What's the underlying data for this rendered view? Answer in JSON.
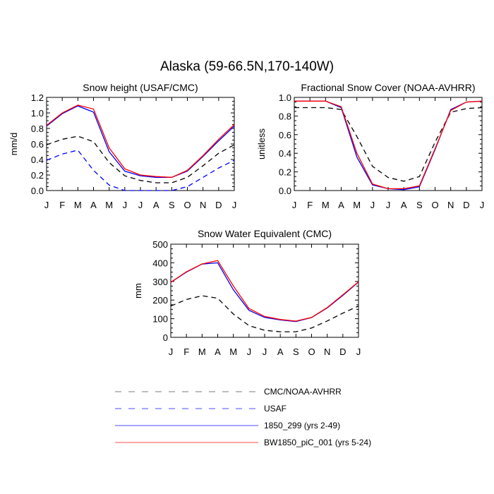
{
  "figure": {
    "title": "Alaska (59-66.5N,170-140W)"
  },
  "colors": {
    "obs": "#000000",
    "usaf": "#0000ff",
    "run_1850_299": "#0000ff",
    "run_bw1850": "#ff0000"
  },
  "legend": [
    {
      "label": "CMC/NOAA-AVHRR",
      "color": "#000000",
      "dash": true
    },
    {
      "label": "USAF",
      "color": "#0000ff",
      "dash": true
    },
    {
      "label": "1850_299 (yrs 2-49)",
      "color": "#0000ff",
      "dash": false
    },
    {
      "label": "BW1850_piC_001 (yrs 5-24)",
      "color": "#ff0000",
      "dash": false
    }
  ],
  "chart_data": [
    {
      "type": "line",
      "title": "Snow height (USAF/CMC)",
      "ylabel": "mm/d",
      "xlabel": "",
      "categories": [
        "J",
        "F",
        "M",
        "A",
        "M",
        "J",
        "J",
        "A",
        "S",
        "O",
        "N",
        "D",
        "J"
      ],
      "ylim": [
        0,
        1.2
      ],
      "yticks": [
        "0.0",
        "0.2",
        "0.4",
        "0.6",
        "0.8",
        "1.0",
        "1.2"
      ],
      "series": [
        {
          "name": "CMC/NOAA-AVHRR",
          "values": [
            0.59,
            0.66,
            0.7,
            0.63,
            0.36,
            0.19,
            0.13,
            0.1,
            0.1,
            0.17,
            0.32,
            0.48,
            0.59
          ],
          "color": "#000000",
          "dash": true
        },
        {
          "name": "USAF",
          "values": [
            0.39,
            0.47,
            0.52,
            0.26,
            0.07,
            0.0,
            0.0,
            0.0,
            0.0,
            0.05,
            0.17,
            0.29,
            0.39
          ],
          "color": "#0000ff",
          "dash": true
        },
        {
          "name": "1850_299 (yrs 2-49)",
          "values": [
            0.83,
            0.99,
            1.09,
            1.01,
            0.5,
            0.25,
            0.19,
            0.17,
            0.17,
            0.25,
            0.44,
            0.64,
            0.83
          ],
          "color": "#0000ff",
          "dash": false
        },
        {
          "name": "BW1850_piC_001 (yrs 5-24)",
          "values": [
            0.84,
            1.0,
            1.1,
            1.05,
            0.55,
            0.28,
            0.2,
            0.18,
            0.17,
            0.26,
            0.45,
            0.66,
            0.85
          ],
          "color": "#ff0000",
          "dash": false
        }
      ]
    },
    {
      "type": "line",
      "title": "Fractional Snow Cover (NOAA-AVHRR)",
      "ylabel": "unitless",
      "xlabel": "",
      "categories": [
        "J",
        "F",
        "M",
        "A",
        "M",
        "J",
        "J",
        "A",
        "S",
        "O",
        "N",
        "D",
        "J"
      ],
      "ylim": [
        0,
        1.0
      ],
      "yticks": [
        "0.0",
        "0.2",
        "0.4",
        "0.6",
        "0.8",
        "1.0"
      ],
      "series": [
        {
          "name": "CMC/NOAA-AVHRR",
          "values": [
            0.89,
            0.89,
            0.89,
            0.87,
            0.58,
            0.26,
            0.14,
            0.1,
            0.15,
            0.52,
            0.84,
            0.88,
            0.89
          ],
          "color": "#000000",
          "dash": true
        },
        {
          "name": "1850_299 (yrs 2-49)",
          "values": [
            0.96,
            0.96,
            0.96,
            0.89,
            0.36,
            0.06,
            0.02,
            0.01,
            0.04,
            0.44,
            0.87,
            0.95,
            0.96
          ],
          "color": "#0000ff",
          "dash": false
        },
        {
          "name": "BW1850_piC_001 (yrs 5-24)",
          "values": [
            0.96,
            0.96,
            0.96,
            0.9,
            0.4,
            0.07,
            0.02,
            0.02,
            0.05,
            0.45,
            0.86,
            0.95,
            0.96
          ],
          "color": "#ff0000",
          "dash": false
        }
      ]
    },
    {
      "type": "line",
      "title": "Snow Water Equivalent (CMC)",
      "ylabel": "mm",
      "xlabel": "",
      "categories": [
        "J",
        "F",
        "M",
        "A",
        "M",
        "J",
        "J",
        "A",
        "S",
        "O",
        "N",
        "D",
        "J"
      ],
      "ylim": [
        0,
        500
      ],
      "yticks": [
        "0",
        "100",
        "200",
        "300",
        "400",
        "500"
      ],
      "series": [
        {
          "name": "CMC/NOAA-AVHRR",
          "values": [
            168,
            203,
            223,
            210,
            125,
            63,
            38,
            30,
            30,
            50,
            88,
            130,
            168
          ],
          "color": "#000000",
          "dash": true
        },
        {
          "name": "1850_299 (yrs 2-49)",
          "values": [
            295,
            350,
            393,
            400,
            255,
            145,
            107,
            93,
            85,
            106,
            158,
            225,
            297
          ],
          "color": "#0000ff",
          "dash": false
        },
        {
          "name": "BW1850_piC_001 (yrs 5-24)",
          "values": [
            296,
            352,
            394,
            412,
            275,
            155,
            112,
            96,
            87,
            107,
            160,
            228,
            298
          ],
          "color": "#ff0000",
          "dash": false
        }
      ]
    }
  ]
}
